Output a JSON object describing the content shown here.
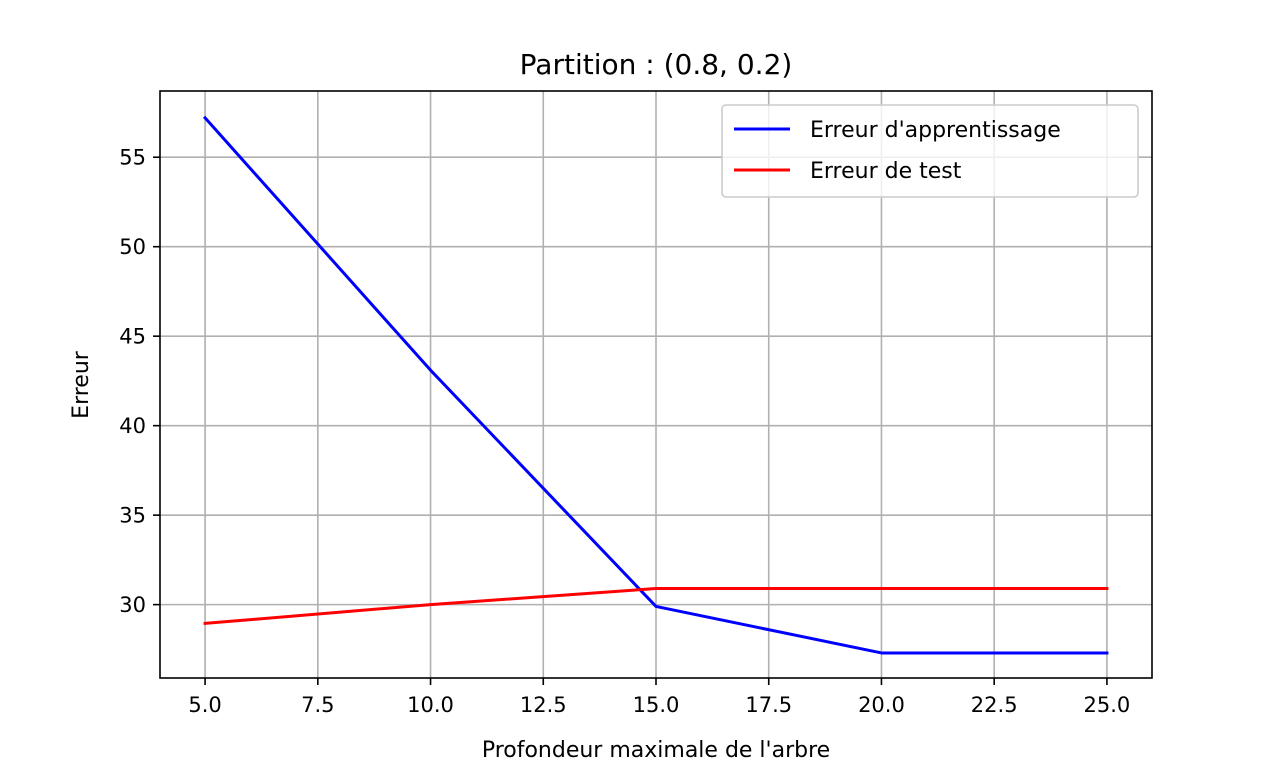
{
  "chart_data": {
    "type": "line",
    "title": "Partition : (0.8, 0.2)",
    "xlabel": "Profondeur maximale de l'arbre",
    "ylabel": "Erreur",
    "x": [
      5,
      10,
      15,
      20,
      25
    ],
    "series": [
      {
        "name": "Erreur d'apprentissage",
        "color": "#0000ff",
        "values": [
          57.2,
          43.1,
          29.9,
          27.3,
          27.3
        ]
      },
      {
        "name": "Erreur de test",
        "color": "#ff0000",
        "values": [
          28.95,
          30.0,
          30.9,
          30.9,
          30.9
        ]
      }
    ],
    "xlim": [
      4.0,
      26.0
    ],
    "ylim": [
      25.9,
      58.7
    ],
    "xticks": [
      5.0,
      7.5,
      10.0,
      12.5,
      15.0,
      17.5,
      20.0,
      22.5,
      25.0
    ],
    "xtick_labels": [
      "5.0",
      "7.5",
      "10.0",
      "12.5",
      "15.0",
      "17.5",
      "20.0",
      "22.5",
      "25.0"
    ],
    "yticks": [
      30,
      35,
      40,
      45,
      50,
      55
    ],
    "ytick_labels": [
      "30",
      "35",
      "40",
      "45",
      "50",
      "55"
    ],
    "grid": true,
    "legend_position": "upper right"
  }
}
